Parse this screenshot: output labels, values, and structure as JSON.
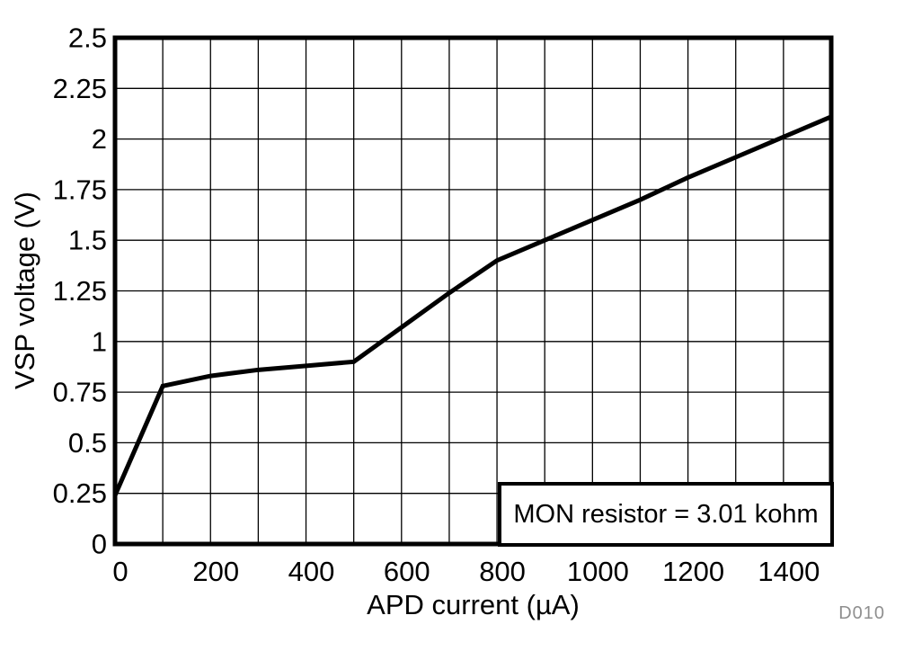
{
  "figure": {
    "background": "#ffffff"
  },
  "chart_data": {
    "type": "line",
    "title": "",
    "xlabel": "APD current (µA)",
    "ylabel": "VSP voltage (V)",
    "xlim": [
      0,
      1500
    ],
    "ylim": [
      0,
      2.5
    ],
    "x_tick_values": [
      0,
      200,
      400,
      600,
      800,
      1000,
      1200,
      1400
    ],
    "x_tick_labels": [
      "0",
      "200",
      "400",
      "600",
      "800",
      "1000",
      "1200",
      "1400"
    ],
    "x_gridline_step": 100,
    "y_tick_values": [
      0,
      0.25,
      0.5,
      0.75,
      1,
      1.25,
      1.5,
      1.75,
      2,
      2.25,
      2.5
    ],
    "y_tick_labels": [
      "0",
      "0.25",
      "0.5",
      "0.75",
      "1",
      "1.25",
      "1.5",
      "1.75",
      "2",
      "2.25",
      "2.5"
    ],
    "grid": true,
    "grid_color": "#000000",
    "line_color": "#000000",
    "legend": {
      "text": "MON resistor = 3.01 kohm",
      "position": "bottom-right"
    },
    "annotation": "D010",
    "annotation_color": "#8f8f8f",
    "series": [
      {
        "name": "VSP voltage vs APD current",
        "x": [
          0,
          100,
          200,
          300,
          400,
          500,
          600,
          700,
          800,
          900,
          1000,
          1100,
          1200,
          1300,
          1400,
          1500
        ],
        "y": [
          0.24,
          0.78,
          0.83,
          0.86,
          0.88,
          0.9,
          1.07,
          1.24,
          1.4,
          1.5,
          1.6,
          1.7,
          1.81,
          1.91,
          2.01,
          2.11
        ]
      }
    ]
  }
}
